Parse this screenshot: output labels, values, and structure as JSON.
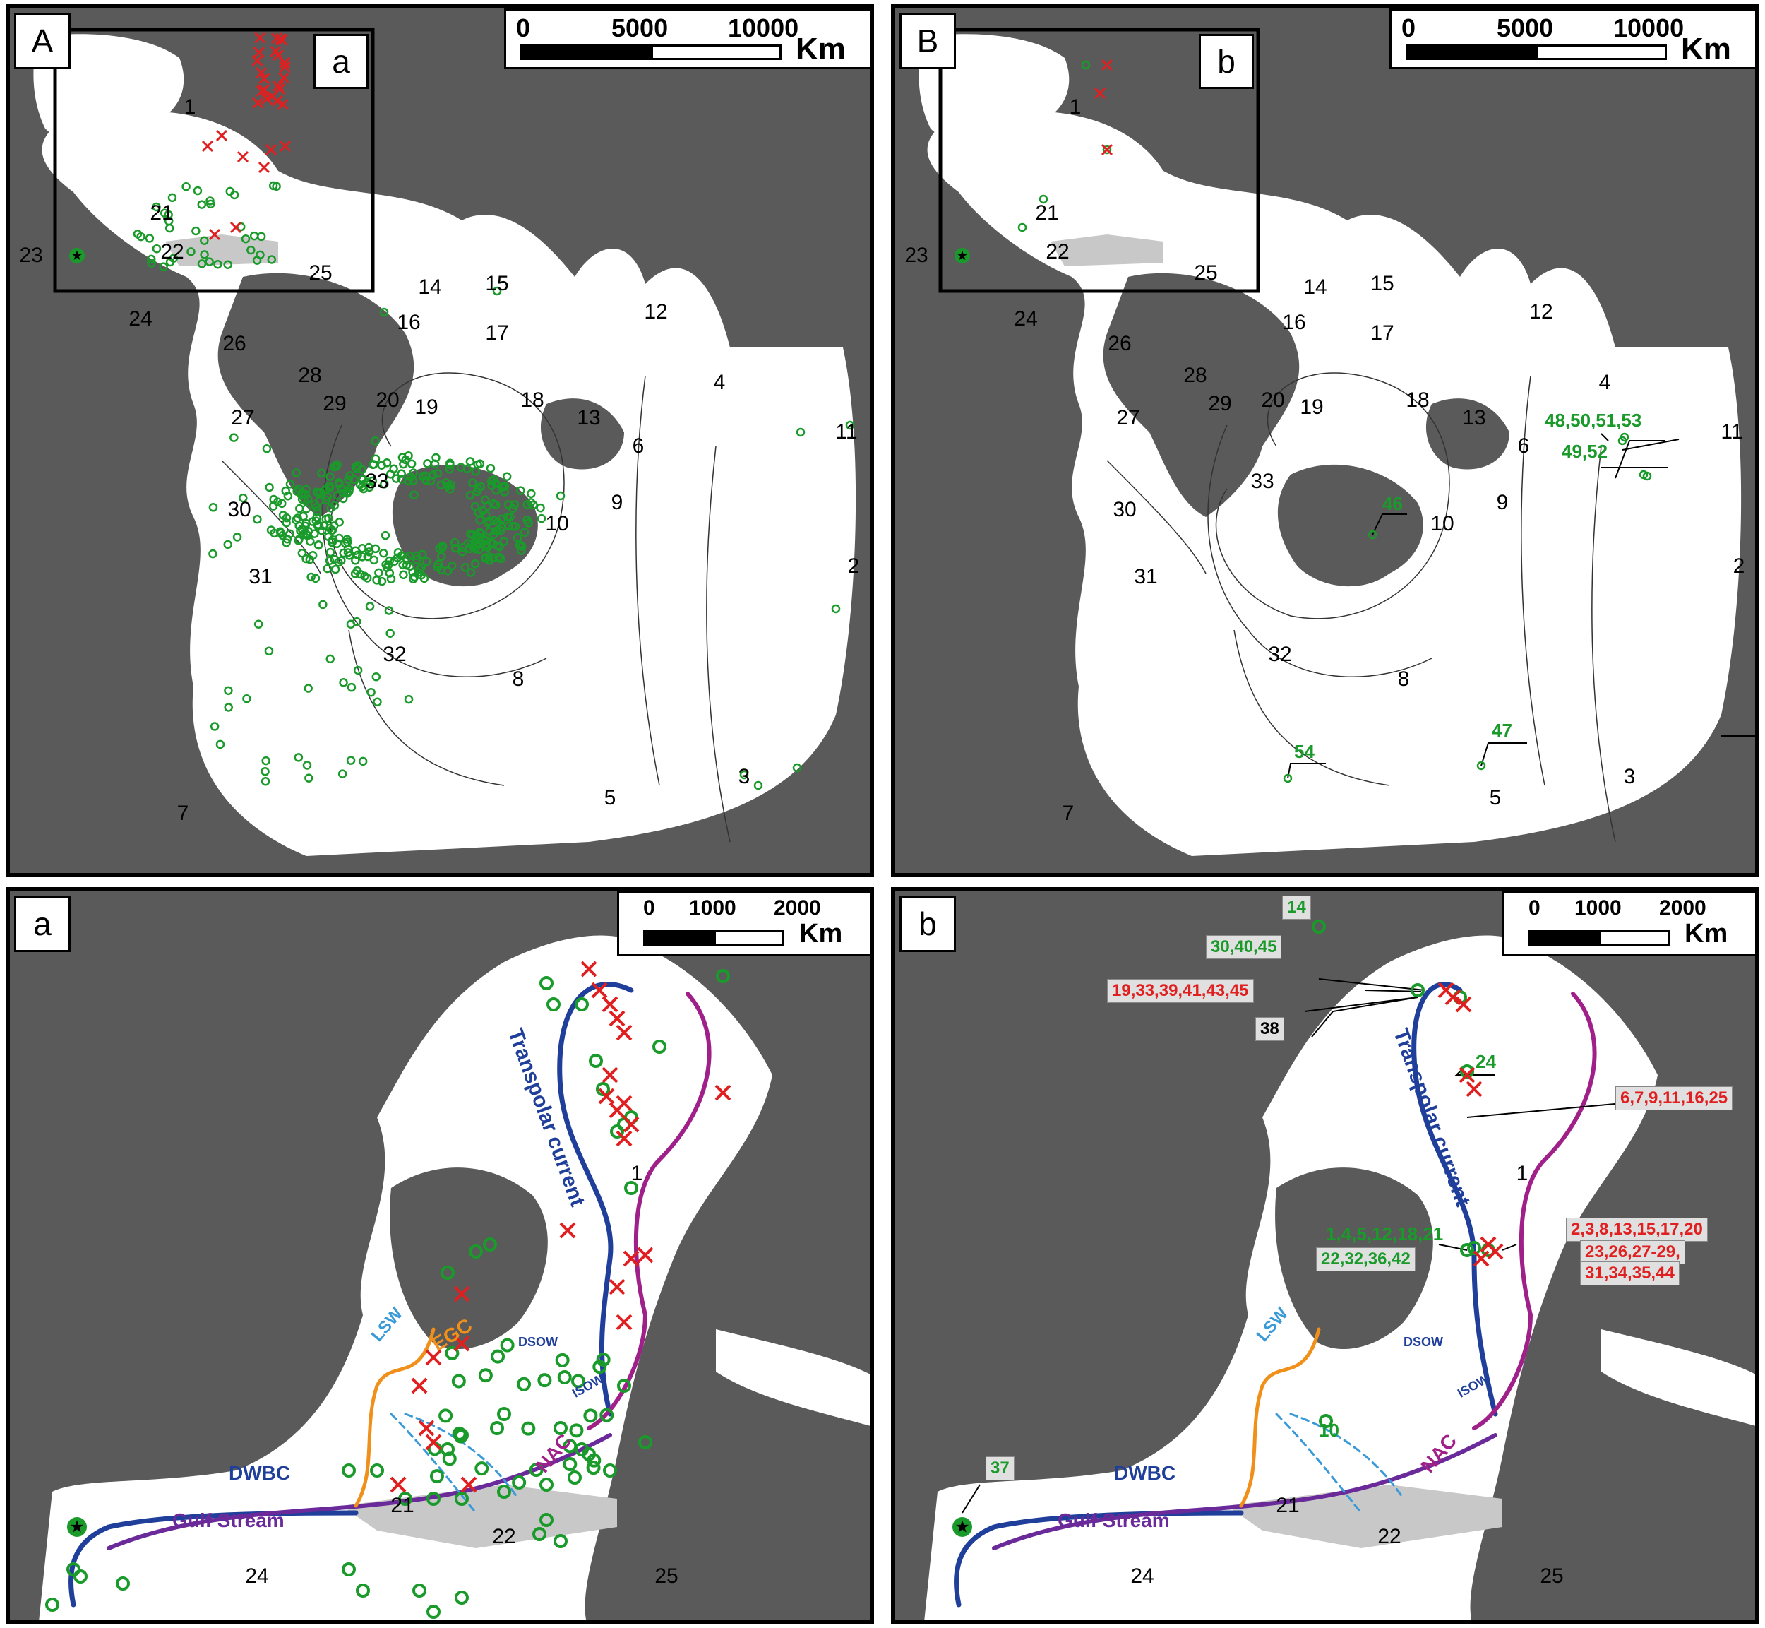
{
  "panels": {
    "A": {
      "label": "A",
      "inset_label": "a",
      "scale": {
        "ticks": [
          "0",
          "5000",
          "10000"
        ],
        "unit": "Km"
      },
      "regions": [
        "1",
        "2",
        "3",
        "4",
        "5",
        "6",
        "7",
        "8",
        "9",
        "10",
        "11",
        "12",
        "13",
        "14",
        "15",
        "16",
        "17",
        "18",
        "19",
        "20",
        "21",
        "22",
        "23",
        "24",
        "25",
        "26",
        "27",
        "28",
        "29",
        "30",
        "31",
        "32",
        "33"
      ]
    },
    "B": {
      "label": "B",
      "inset_label": "b",
      "scale": {
        "ticks": [
          "0",
          "5000",
          "10000"
        ],
        "unit": "Km"
      },
      "regions": [
        "1",
        "2",
        "3",
        "4",
        "5",
        "6",
        "7",
        "8",
        "9",
        "10",
        "11",
        "12",
        "13",
        "14",
        "15",
        "16",
        "17",
        "18",
        "19",
        "20",
        "21",
        "22",
        "23",
        "24",
        "25",
        "26",
        "27",
        "28",
        "29",
        "30",
        "31",
        "32",
        "33"
      ],
      "site_labels": [
        "48,50,51,53",
        "49,52",
        "46",
        "47",
        "54"
      ]
    },
    "a": {
      "label": "a",
      "scale": {
        "ticks": [
          "0",
          "1000",
          "2000"
        ],
        "unit": "Km"
      },
      "regions": [
        "1",
        "21",
        "22",
        "24",
        "25"
      ],
      "currents": {
        "transpolar": "Transpolar current",
        "egc": "EGC",
        "lsw": "LSW",
        "dsow": "DSOW",
        "isow": "ISOW",
        "nac": "NAC",
        "dwbc": "DWBC",
        "gulf": "Gulf Stream"
      }
    },
    "b": {
      "label": "b",
      "scale": {
        "ticks": [
          "0",
          "1000",
          "2000"
        ],
        "unit": "Km"
      },
      "regions": [
        "1",
        "21",
        "22",
        "24",
        "25"
      ],
      "currents": {
        "transpolar": "Transpolar current",
        "lsw": "LSW",
        "dsow": "DSOW",
        "isow": "ISOW",
        "nac": "NAC",
        "dwbc": "DWBC",
        "gulf": "Gulf Stream"
      },
      "site_labels": {
        "s14": "14",
        "s30": "30,40,45",
        "s19": "19,33,39,41,43,45",
        "s38": "38",
        "s24": "24",
        "s6": "6,7,9,11,16,25",
        "s1": "1,4,5,12,18,21",
        "s22": "22,32,36,42",
        "s2": "2,3,8,13,15,17,20",
        "s23": "23,26,27-29,",
        "s31": "31,34,35,44",
        "s10": "10",
        "s37": "37"
      }
    }
  },
  "colors": {
    "land": "#5a5a5a",
    "ocean": "#ffffff",
    "shelf": "#c8c8c8",
    "present": "#1a9a2a",
    "absent": "#e02020",
    "transpolar": "#1f3f9a",
    "nac": "#a0208a",
    "gulf": "#6a2a9a",
    "egc": "#f0901a",
    "lsw": "#3a9ad8"
  },
  "legend_icons": [
    "green-circle-present-icon",
    "red-cross-absent-icon",
    "star-icon"
  ]
}
